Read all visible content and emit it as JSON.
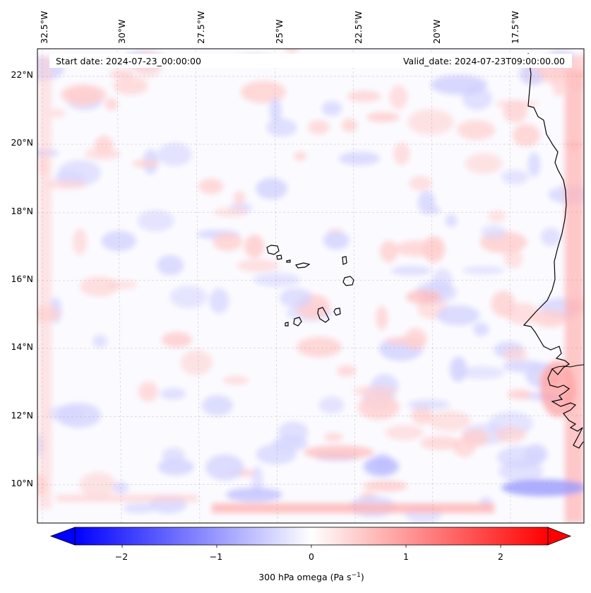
{
  "header": {
    "start_date": "Start date: 2024-07-23_00:00:00",
    "valid_date": "Valid_date: 2024-07-23T09:00:00.00"
  },
  "map": {
    "type": "filled-contour map",
    "variable": "300 hPa omega",
    "longitude_labels": [
      "32.5°W",
      "30°W",
      "27.5°W",
      "25°W",
      "22.5°W",
      "20°W",
      "17.5°W"
    ],
    "latitude_labels": [
      "22°N",
      "20°N",
      "18°N",
      "16°N",
      "14°N",
      "12°N",
      "10°N"
    ],
    "lon_range": [
      -32.8,
      -15.2
    ],
    "lat_range": [
      9.0,
      22.8
    ],
    "gridlines": true,
    "colormap": "bwr",
    "colors": {
      "negative": "#0000ff",
      "zero": "#ffffff",
      "positive": "#ff0000",
      "coastline": "#000000"
    }
  },
  "colorbar": {
    "label_main": "300 hPa omega (Pa s",
    "label_exp": "−1",
    "label_close": ")",
    "ticks": [
      "−2",
      "−1",
      "0",
      "1",
      "2"
    ],
    "tick_values": [
      -2,
      -1,
      0,
      1,
      2
    ],
    "vmin": -2.5,
    "vmax": 2.5,
    "extend": "both"
  }
}
